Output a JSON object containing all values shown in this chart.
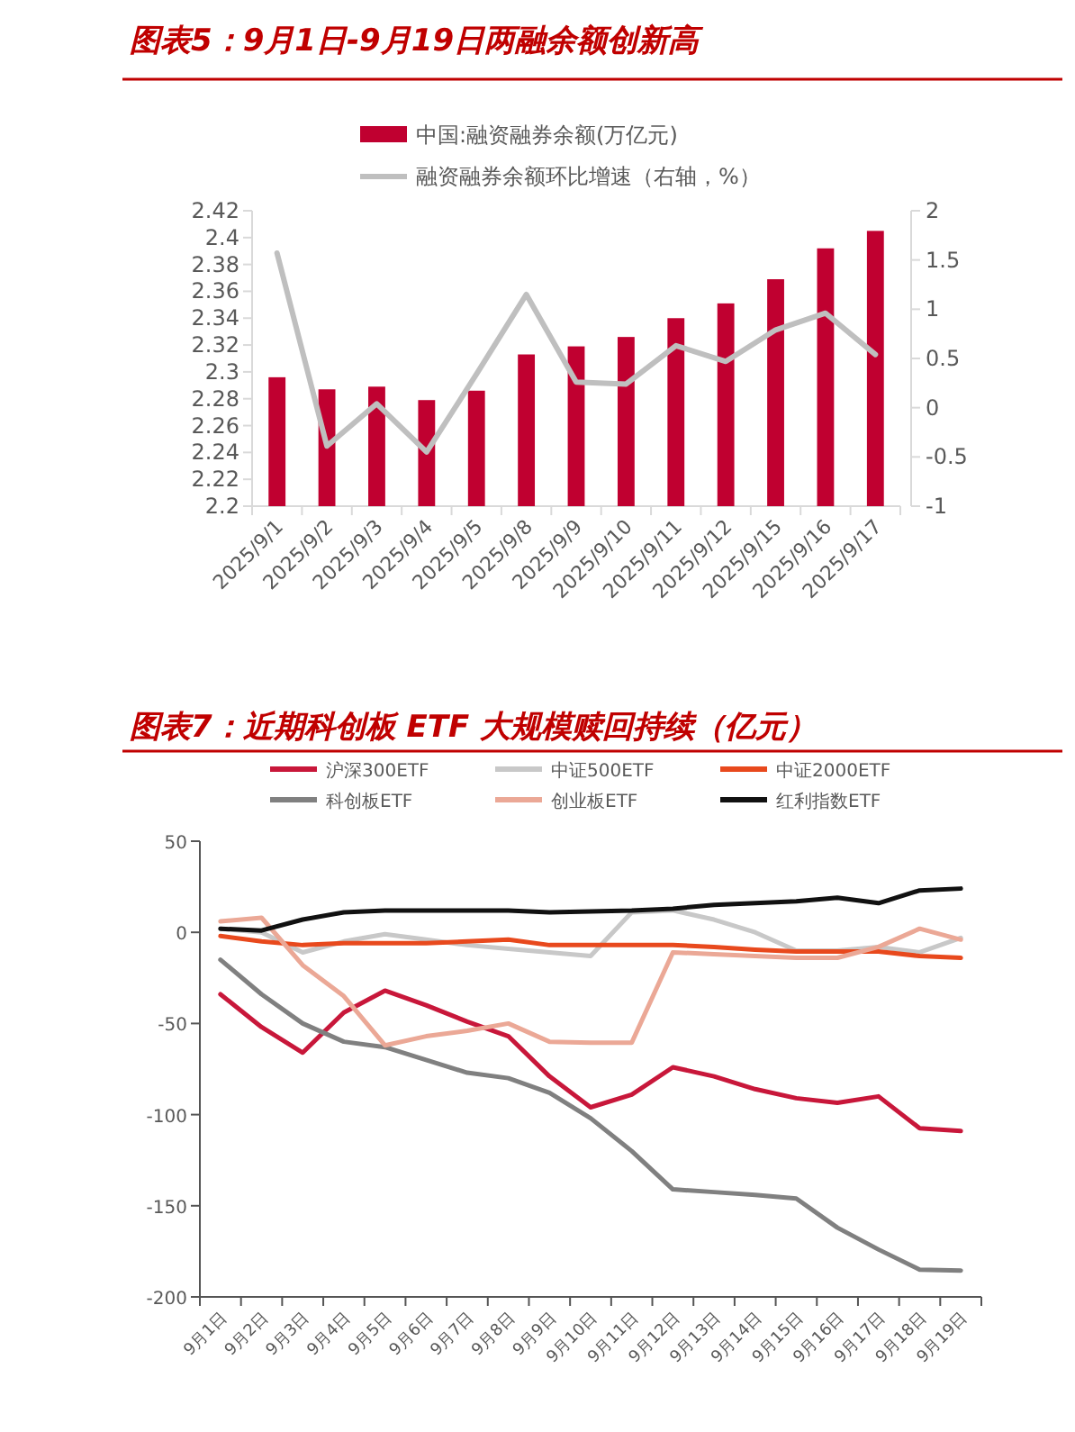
{
  "chart_data": [
    {
      "type": "bar",
      "title": "图表5：9月1日-9月19日两融余额创新高",
      "legend": "top",
      "categories": [
        "2025/9/1",
        "2025/9/2",
        "2025/9/3",
        "2025/9/4",
        "2025/9/5",
        "2025/9/8",
        "2025/9/9",
        "2025/9/10",
        "2025/9/11",
        "2025/9/12",
        "2025/9/15",
        "2025/9/16",
        "2025/9/17"
      ],
      "series": [
        {
          "name": "中国:融资融券余额(万亿元)",
          "type": "bar",
          "color": "#c00030",
          "values": [
            2.296,
            2.287,
            2.289,
            2.279,
            2.286,
            2.313,
            2.319,
            2.326,
            2.34,
            2.351,
            2.369,
            2.392,
            2.405
          ]
        },
        {
          "name": "融资融券余额环比增速（右轴，%）",
          "type": "line",
          "axis": "y2",
          "color": "#bfbfbf",
          "values": [
            1.57,
            -0.39,
            0.04,
            -0.45,
            0.34,
            1.15,
            0.26,
            0.24,
            0.63,
            0.47,
            0.79,
            0.96,
            0.54
          ]
        }
      ],
      "ylim": [
        2.2,
        2.42
      ],
      "yticks": [
        2.2,
        2.22,
        2.24,
        2.26,
        2.28,
        2.3,
        2.32,
        2.34,
        2.36,
        2.38,
        2.4,
        2.42
      ],
      "y2lim": [
        -1,
        2
      ],
      "y2ticks": [
        -1,
        -0.5,
        0,
        0.5,
        1,
        1.5,
        2
      ]
    },
    {
      "type": "line",
      "title": "图表7：近期科创板 ETF 大规模赎回持续（亿元）",
      "legend": "top",
      "categories": [
        "9月1日",
        "9月2日",
        "9月3日",
        "9月4日",
        "9月5日",
        "9月6日",
        "9月7日",
        "9月8日",
        "9月9日",
        "9月10日",
        "9月11日",
        "9月12日",
        "9月13日",
        "9月14日",
        "9月15日",
        "9月16日",
        "9月17日",
        "9月18日",
        "9月19日"
      ],
      "series": [
        {
          "name": "沪深300ETF",
          "color": "#c8173a",
          "values": [
            -34,
            -52,
            -66,
            -44,
            -32,
            -40,
            -49,
            -57,
            -79,
            -96,
            -89,
            -74,
            -79,
            -86,
            -91,
            -93.5,
            -90,
            -107.5,
            -109
          ]
        },
        {
          "name": "中证500ETF",
          "color": "#c8c8c8",
          "values": [
            2,
            0,
            -11,
            -5,
            -1,
            -4,
            -7,
            -9,
            -11,
            -13,
            11,
            12,
            7,
            0,
            -10,
            -10,
            -8,
            -11,
            -3
          ]
        },
        {
          "name": "中证2000ETF",
          "color": "#e8491d",
          "values": [
            -2,
            -5,
            -7,
            -6,
            -6,
            -6,
            -5,
            -4,
            -7,
            -7,
            -7,
            -7,
            -8,
            -9.5,
            -10.5,
            -10.5,
            -10.5,
            -13,
            -14
          ]
        },
        {
          "name": "科创板ETF",
          "color": "#808080",
          "values": [
            -15,
            -34,
            -50,
            -60,
            -63,
            -70,
            -77,
            -80,
            -88,
            -102,
            -120,
            -141,
            -142.5,
            -144,
            -146,
            -162,
            -174,
            -185,
            -185.5
          ]
        },
        {
          "name": "创业板ETF",
          "color": "#eba896",
          "values": [
            6,
            8,
            -18,
            -35,
            -62,
            -57,
            -54,
            -50,
            -60,
            -60.5,
            -60.5,
            -11,
            -12,
            -13,
            -14,
            -14,
            -8,
            2,
            -4
          ]
        },
        {
          "name": "红利指数ETF",
          "color": "#111111",
          "values": [
            2,
            1,
            7,
            11,
            12,
            12,
            12,
            12,
            11,
            11.5,
            12,
            13,
            15,
            16,
            17,
            19,
            16,
            23,
            24
          ]
        }
      ],
      "ylim": [
        -200,
        50
      ],
      "yticks": [
        -200,
        -150,
        -100,
        -50,
        0,
        50
      ]
    }
  ]
}
